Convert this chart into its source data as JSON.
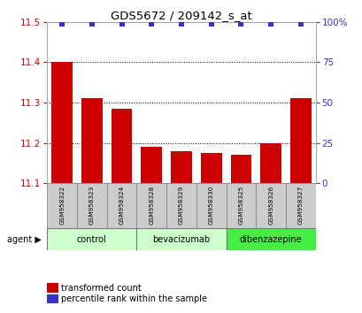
{
  "title": "GDS5672 / 209142_s_at",
  "samples": [
    "GSM958322",
    "GSM958323",
    "GSM958324",
    "GSM958328",
    "GSM958329",
    "GSM958330",
    "GSM958325",
    "GSM958326",
    "GSM958327"
  ],
  "bar_values": [
    11.4,
    11.31,
    11.285,
    11.19,
    11.18,
    11.175,
    11.17,
    11.2,
    11.31
  ],
  "percentile_values": [
    99,
    99,
    99,
    99,
    99,
    99,
    99,
    99,
    99
  ],
  "bar_color": "#cc0000",
  "dot_color": "#3333cc",
  "ylim_left": [
    11.1,
    11.5
  ],
  "ylim_right": [
    0,
    100
  ],
  "yticks_left": [
    11.1,
    11.2,
    11.3,
    11.4,
    11.5
  ],
  "yticks_right": [
    0,
    25,
    50,
    75,
    100
  ],
  "groups": [
    {
      "label": "control",
      "start": 0,
      "end": 2,
      "color": "#ccffcc"
    },
    {
      "label": "bevacizumab",
      "start": 3,
      "end": 5,
      "color": "#ccffcc"
    },
    {
      "label": "dibenzazepine",
      "start": 6,
      "end": 8,
      "color": "#44ee44"
    }
  ],
  "group_label": "agent",
  "legend_bar_label": "transformed count",
  "legend_dot_label": "percentile rank within the sample",
  "title_color": "#000000",
  "left_axis_color": "#cc0000",
  "right_axis_color": "#3333cc",
  "bar_width": 0.7,
  "sample_box_color": "#cccccc",
  "sample_box_edge": "#888888"
}
